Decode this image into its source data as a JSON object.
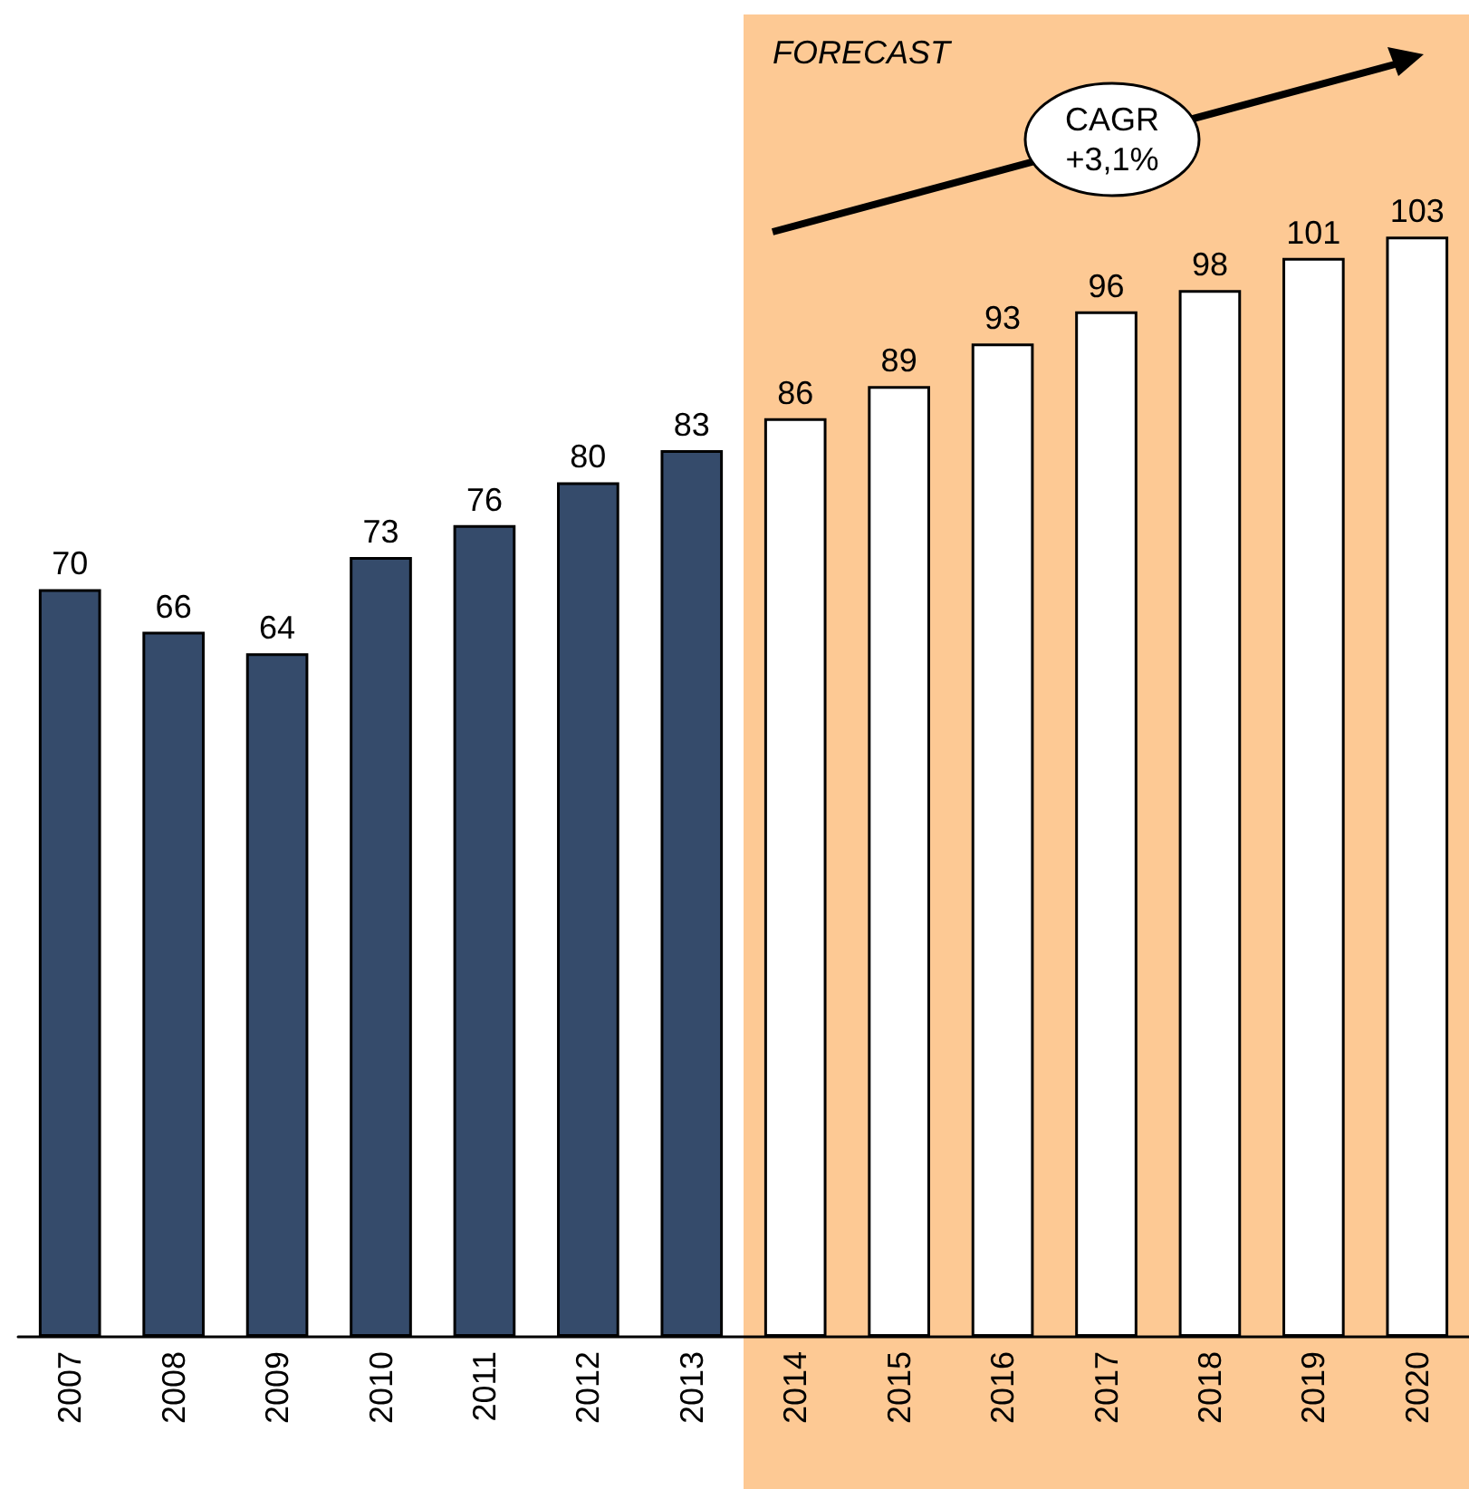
{
  "chart_data": {
    "type": "bar",
    "categories": [
      "2007",
      "2008",
      "2009",
      "2010",
      "2011",
      "2012",
      "2013",
      "2014",
      "2015",
      "2016",
      "2017",
      "2018",
      "2019",
      "2020"
    ],
    "values": [
      70,
      66,
      64,
      73,
      76,
      80,
      83,
      86,
      89,
      93,
      96,
      98,
      101,
      103
    ],
    "colors": [
      "#354b6b",
      "#354b6b",
      "#354b6b",
      "#354b6b",
      "#354b6b",
      "#354b6b",
      "#354b6b",
      "#ffffff",
      "#ffffff",
      "#ffffff",
      "#ffffff",
      "#ffffff",
      "#ffffff",
      "#ffffff"
    ],
    "data_labels": true,
    "bands": [
      {
        "axis": "x",
        "from": "2014",
        "to": "2020",
        "label": "FORECAST",
        "color": "#fdc994"
      }
    ],
    "annotations": [
      "CAGR\n+3,1%"
    ],
    "grid": false
  }
}
